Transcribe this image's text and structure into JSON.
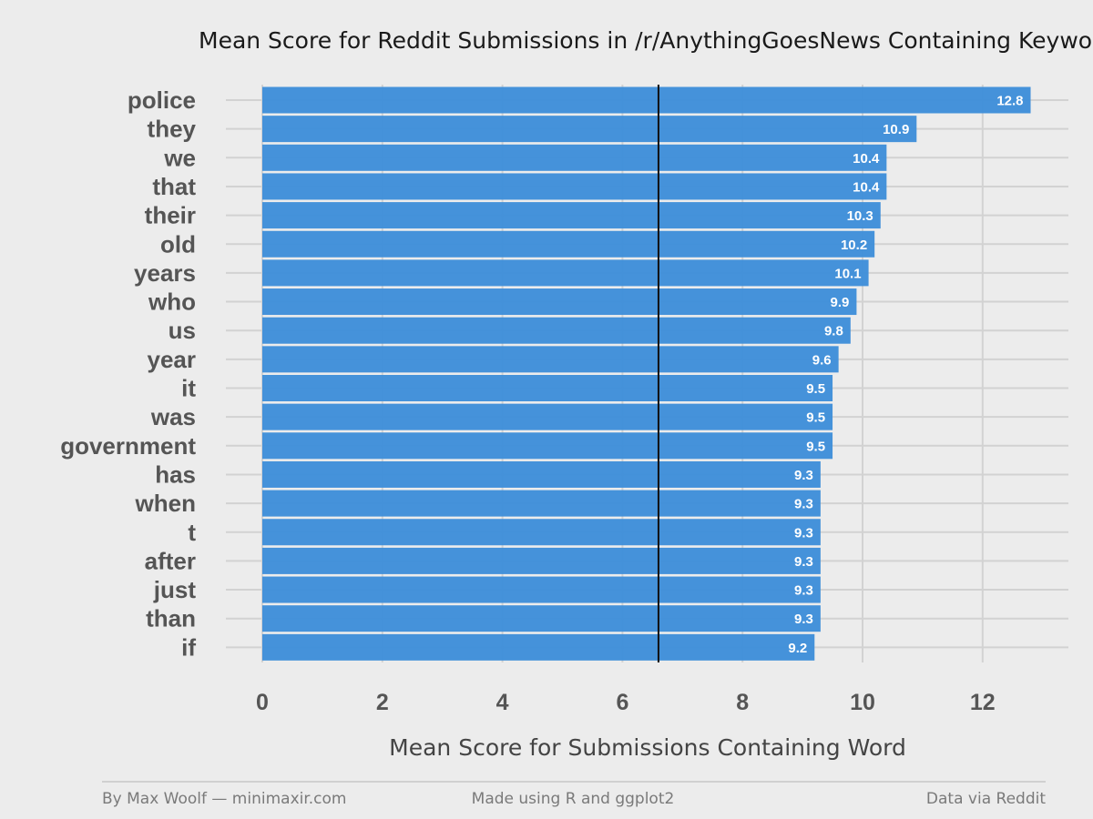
{
  "chart_data": {
    "type": "bar",
    "orientation": "horizontal",
    "title": "Mean Score for Reddit Submissions in /r/AnythingGoesNews Containing Keyword",
    "xlabel": "Mean Score for Submissions Containing Word",
    "ylabel": "",
    "xlim": [
      0,
      13.5
    ],
    "x_ticks": [
      0,
      2,
      4,
      6,
      8,
      10,
      12
    ],
    "x_tick_labels": [
      "0",
      "2",
      "4",
      "6",
      "8",
      "10",
      "12"
    ],
    "reference_line": 6.6,
    "categories": [
      "police",
      "they",
      "we",
      "that",
      "their",
      "old",
      "years",
      "who",
      "us",
      "year",
      "it",
      "was",
      "government",
      "has",
      "when",
      "t",
      "after",
      "just",
      "than",
      "if"
    ],
    "values": [
      12.8,
      10.9,
      10.4,
      10.4,
      10.3,
      10.2,
      10.1,
      9.9,
      9.8,
      9.6,
      9.5,
      9.5,
      9.5,
      9.3,
      9.3,
      9.3,
      9.3,
      9.3,
      9.3,
      9.2
    ],
    "value_labels": [
      "12.8",
      "10.9",
      "10.4",
      "10.4",
      "10.3",
      "10.2",
      "10.1",
      "9.9",
      "9.8",
      "9.6",
      "9.5",
      "9.5",
      "9.5",
      "9.3",
      "9.3",
      "9.3",
      "9.3",
      "9.3",
      "9.3",
      "9.2"
    ],
    "bar_color": "#3c8dd9",
    "grid": true,
    "legend": "none"
  },
  "footer": {
    "left": "By Max Woolf — minimaxir.com",
    "center": "Made using R and ggplot2",
    "right": "Data via Reddit"
  }
}
